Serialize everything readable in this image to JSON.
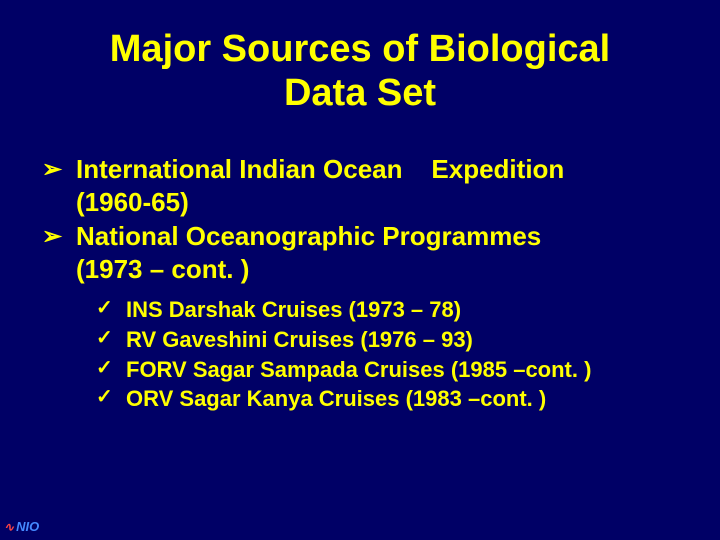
{
  "slide": {
    "title_line1": "Major Sources of Biological",
    "title_line2": "Data Set",
    "title_color": "#ffff00",
    "title_font": "Comic Sans MS",
    "title_fontsize": 38,
    "background_color": "#000066",
    "body_color": "#ffff00",
    "body_font": "Arial",
    "main_bullet": "➢",
    "sub_bullet": "✓",
    "main_items": [
      {
        "text_part1": "International Indian Ocean",
        "text_part2": "Expedition",
        "text_line2": "(1960-65)"
      },
      {
        "text_part1": "National Oceanographic Programmes",
        "text_line2": "(1973 – cont. )"
      }
    ],
    "sub_items": [
      "INS Darshak Cruises (1973 – 78)",
      "RV Gaveshini Cruises (1976 – 93)",
      "FORV Sagar Sampada Cruises (1985 –cont. )",
      "ORV Sagar Kanya Cruises (1983 –cont. )"
    ],
    "main_fontsize": 26,
    "sub_fontsize": 22
  },
  "logo": {
    "wave": "∿",
    "text": "NIO",
    "wave_color": "#ff4444",
    "text_color": "#4488ff"
  }
}
